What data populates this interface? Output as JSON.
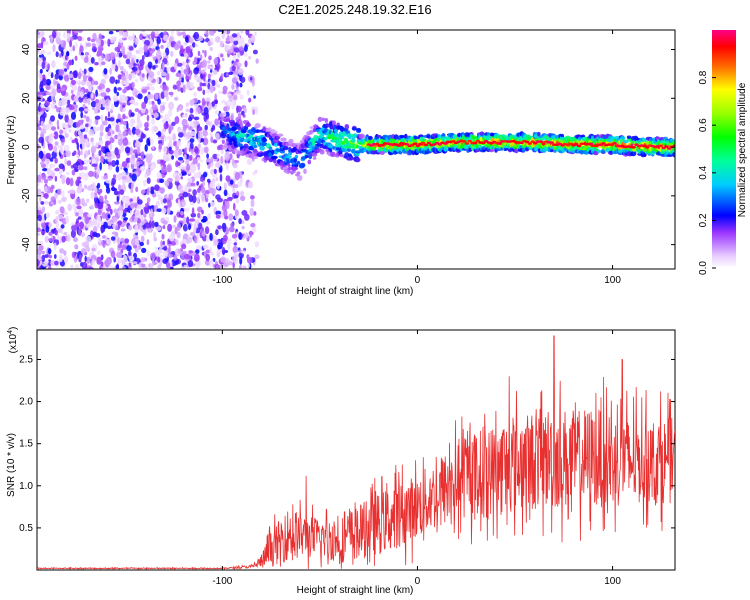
{
  "title": "C2E1.2025.248.19.32.E16",
  "chart_data": [
    {
      "type": "heatmap",
      "name": "spectrogram",
      "xlabel": "Height of straight line (km)",
      "ylabel": "Frequency (Hz)",
      "xlim": [
        -195,
        132
      ],
      "ylim": [
        -50,
        48
      ],
      "x_ticks": [
        -100,
        0,
        100
      ],
      "x_tick_labels": [
        "-100",
        "0",
        "100"
      ],
      "y_ticks": [
        -40,
        -20,
        0,
        20,
        40
      ],
      "y_tick_labels": [
        "-40",
        "-20",
        "0",
        "20",
        "40"
      ],
      "colorbar": {
        "label": "Normalized spectral amplitude",
        "range": [
          0,
          1
        ],
        "ticks": [
          0,
          0.2,
          0.4,
          0.6,
          0.8
        ],
        "tick_labels": [
          "0.0",
          "0.2",
          "0.4",
          "0.6",
          "0.8"
        ]
      },
      "noise_region": {
        "x_range": [
          -195,
          -90
        ],
        "freq_range": [
          -50,
          48
        ],
        "amplitude": [
          0.0,
          0.2
        ]
      },
      "signal_trace": {
        "x": [
          -100,
          -90,
          -80,
          -70,
          -60,
          -55,
          -50,
          -40,
          -30,
          -20,
          -10,
          0,
          20,
          40,
          60,
          80,
          100,
          120,
          132
        ],
        "freq": [
          7,
          4,
          2,
          -2,
          -6,
          0,
          5,
          3,
          1,
          1,
          1,
          1,
          2,
          2,
          2,
          1,
          1,
          0,
          0
        ],
        "peak_amplitude": [
          0.3,
          0.45,
          0.45,
          0.4,
          0.35,
          0.45,
          0.5,
          0.6,
          0.7,
          0.9,
          0.92,
          0.92,
          0.92,
          0.95,
          0.95,
          0.95,
          0.95,
          0.95,
          0.95
        ]
      }
    },
    {
      "type": "line",
      "name": "snr",
      "xlabel": "Height of straight line (km)",
      "ylabel": "SNR (10 * v/v)",
      "y_scale_label": "(x10",
      "y_scale_exponent": "4",
      "xlim": [
        -195,
        132
      ],
      "ylim": [
        0,
        2.85
      ],
      "x_ticks": [
        -100,
        0,
        100
      ],
      "x_tick_labels": [
        "-100",
        "0",
        "100"
      ],
      "y_ticks": [
        0.5,
        1.0,
        1.5,
        2.0,
        2.5
      ],
      "y_tick_labels": [
        "0.5",
        "1.0",
        "1.5",
        "2.0",
        "2.5"
      ],
      "color": "#e83030",
      "envelope": {
        "x": [
          -195,
          -150,
          -100,
          -85,
          -80,
          -75,
          -70,
          -65,
          -60,
          -50,
          -40,
          -30,
          -20,
          -10,
          0,
          10,
          20,
          30,
          40,
          50,
          60,
          70,
          80,
          90,
          100,
          110,
          120,
          132
        ],
        "mean": [
          0.02,
          0.02,
          0.02,
          0.04,
          0.1,
          0.25,
          0.35,
          0.45,
          0.4,
          0.38,
          0.35,
          0.45,
          0.55,
          0.65,
          0.75,
          0.9,
          1.05,
          1.15,
          1.2,
          1.25,
          1.3,
          1.35,
          1.3,
          1.35,
          1.3,
          1.3,
          1.3,
          1.3
        ],
        "spread": [
          0.01,
          0.01,
          0.01,
          0.03,
          0.15,
          0.35,
          0.45,
          0.55,
          0.45,
          0.4,
          0.45,
          0.55,
          0.6,
          0.65,
          0.65,
          0.7,
          0.8,
          0.85,
          0.9,
          0.95,
          1.0,
          1.05,
          1.0,
          1.0,
          0.95,
          0.9,
          0.85,
          0.85
        ]
      },
      "notable_peaks": [
        {
          "x": 70,
          "y": 2.78
        },
        {
          "x": -57,
          "y": 1.12
        },
        {
          "x": 27,
          "y": 1.75
        },
        {
          "x": 47,
          "y": 2.3
        },
        {
          "x": 105,
          "y": 2.5
        }
      ]
    }
  ]
}
